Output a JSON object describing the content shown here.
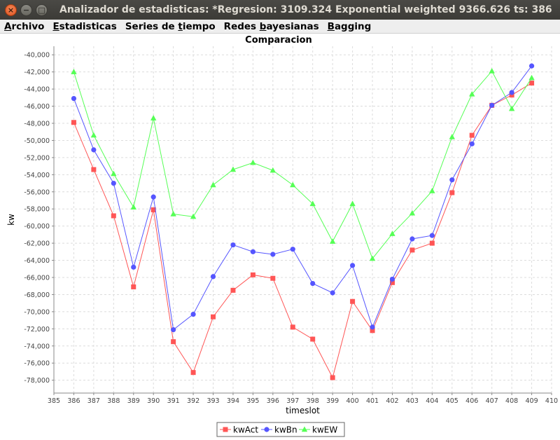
{
  "window": {
    "title": "Analizador de estadisticas: *Regresion: 3109.324 Exponential weighted 9366.626 ts: 386",
    "close_glyph": "×",
    "minimize_glyph": "−",
    "maximize_glyph": "□"
  },
  "menu": {
    "items": [
      {
        "label": "Archivo",
        "mnemonic_index": 0
      },
      {
        "label": "Estadisticas",
        "mnemonic_index": 0
      },
      {
        "label": "Series de tiempo",
        "mnemonic_index": 10
      },
      {
        "label": "Redes bayesianas",
        "mnemonic_index": 6
      },
      {
        "label": "Bagging",
        "mnemonic_index": 0
      }
    ]
  },
  "chart_data": {
    "type": "line",
    "title": "Comparacion",
    "xlabel": "timeslot",
    "ylabel": "kw",
    "xlim": [
      385,
      410
    ],
    "ylim": [
      -79500,
      -39000
    ],
    "x_ticks": [
      385,
      386,
      387,
      388,
      389,
      390,
      391,
      392,
      393,
      394,
      395,
      396,
      397,
      398,
      399,
      400,
      401,
      402,
      403,
      404,
      405,
      406,
      407,
      408,
      409,
      410
    ],
    "y_ticks": [
      -78000,
      -76000,
      -74000,
      -72000,
      -70000,
      -68000,
      -66000,
      -64000,
      -62000,
      -60000,
      -58000,
      -56000,
      -54000,
      -52000,
      -50000,
      -48000,
      -46000,
      -44000,
      -42000,
      -40000
    ],
    "y_tick_labels": [
      "-78,000",
      "-76,000",
      "-74,000",
      "-72,000",
      "-70,000",
      "-68,000",
      "-66,000",
      "-64,000",
      "-62,000",
      "-60,000",
      "-58,000",
      "-56,000",
      "-54,000",
      "-52,000",
      "-50,000",
      "-48,000",
      "-46,000",
      "-44,000",
      "-42,000",
      "-40,000"
    ],
    "grid": true,
    "legend_position": "bottom",
    "x": [
      386,
      387,
      388,
      389,
      390,
      391,
      392,
      393,
      394,
      395,
      396,
      397,
      398,
      399,
      400,
      401,
      402,
      403,
      404,
      405,
      406,
      407,
      408,
      409
    ],
    "series": [
      {
        "name": "kwAct",
        "color": "#ff5555",
        "marker": "square",
        "values": [
          -47900,
          -53400,
          -58800,
          -67100,
          -58100,
          -73500,
          -77100,
          -70600,
          -67500,
          -65700,
          -66100,
          -71800,
          -73200,
          -77700,
          -68800,
          -72200,
          -66600,
          -62800,
          -62000,
          -56100,
          -49400,
          -45900,
          -44700,
          -43300
        ]
      },
      {
        "name": "kwBn",
        "color": "#5555ff",
        "marker": "circle",
        "values": [
          -45100,
          -51100,
          -55000,
          -64800,
          -56600,
          -72100,
          -70300,
          -65900,
          -62200,
          -63000,
          -63300,
          -62700,
          -66700,
          -67800,
          -64600,
          -71800,
          -66200,
          -61500,
          -61100,
          -54600,
          -50400,
          -45900,
          -44400,
          -41300
        ]
      },
      {
        "name": "kwEW",
        "color": "#55ff55",
        "marker": "triangle",
        "values": [
          -42000,
          -49400,
          -53900,
          -57800,
          -47400,
          -58600,
          -58900,
          -55200,
          -53400,
          -52600,
          -53500,
          -55200,
          -57400,
          -61800,
          -57400,
          -63800,
          -60900,
          -58500,
          -55900,
          -49600,
          -44600,
          -41900,
          -46300,
          -42700
        ]
      }
    ]
  }
}
